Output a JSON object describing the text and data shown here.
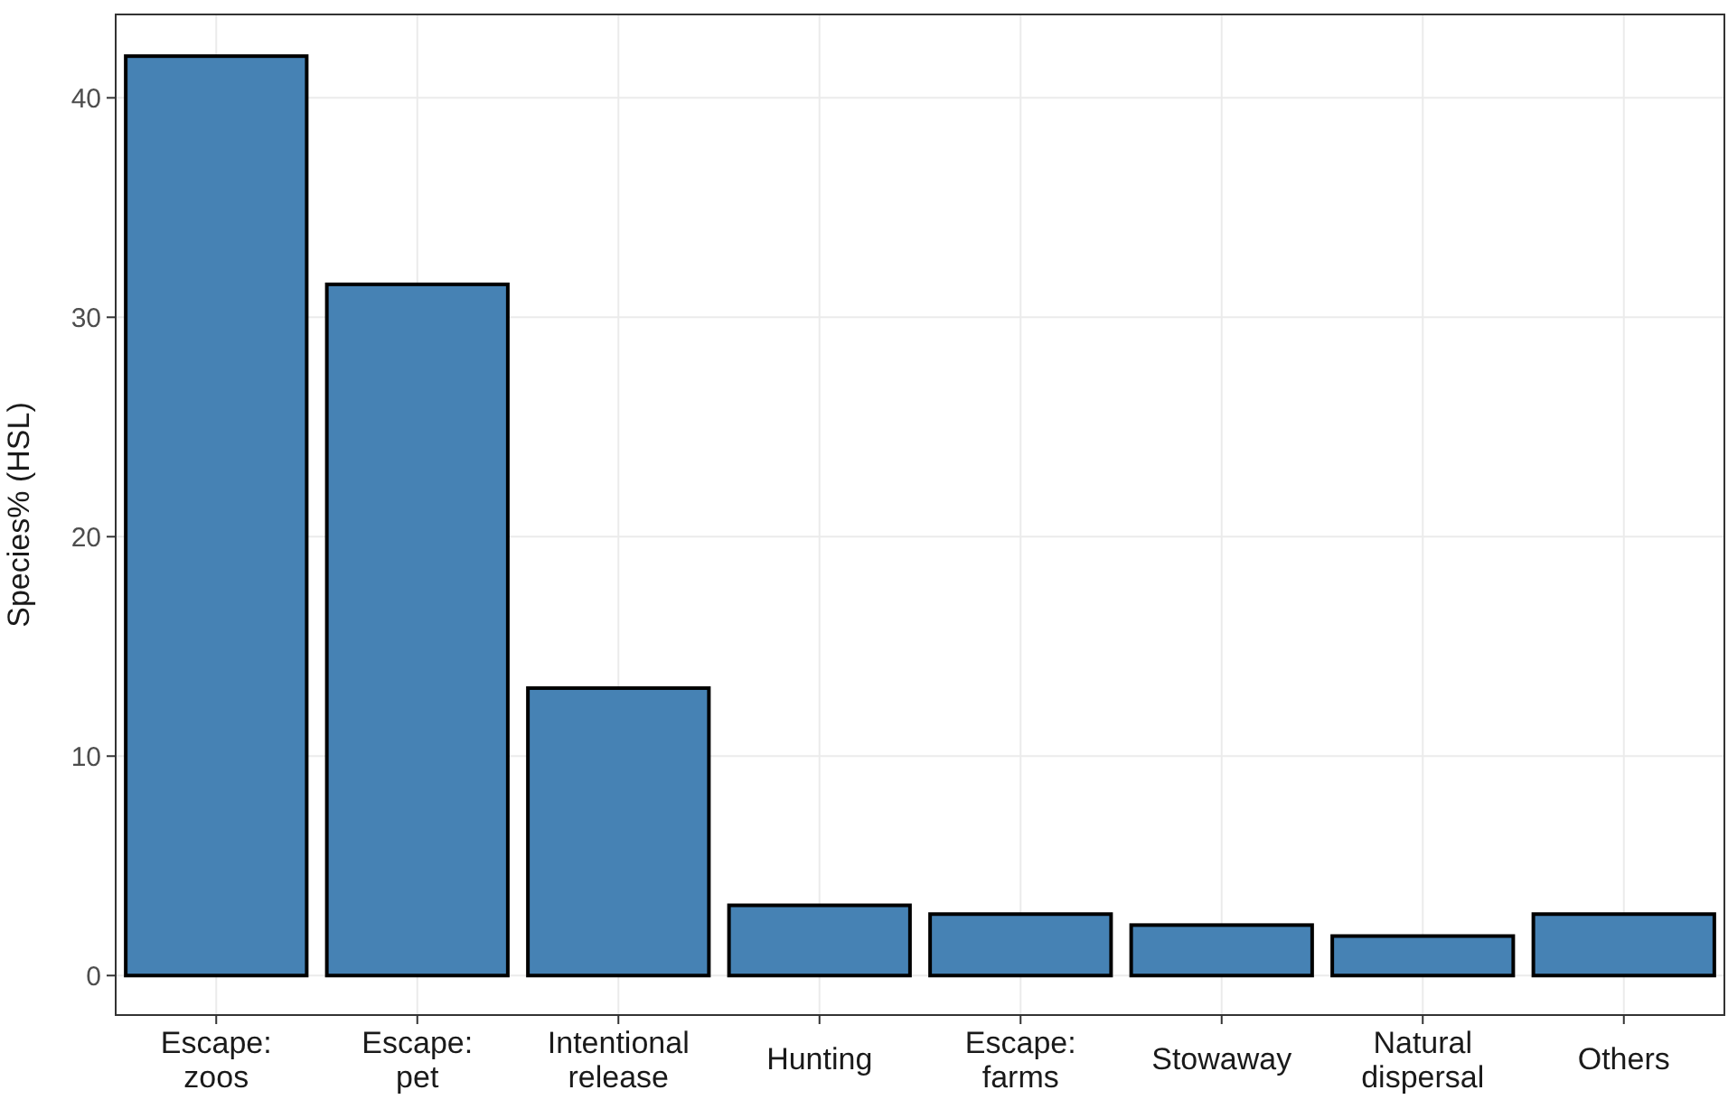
{
  "chart_data": {
    "type": "bar",
    "ylabel": "Species% (HSL)",
    "categories": [
      "Escape:\nzoos",
      "Escape:\npet",
      "Intentional\nrelease",
      "Hunting",
      "Escape:\nfarms",
      "Stowaway",
      "Natural\ndispersal",
      "Others"
    ],
    "values": [
      41.9,
      31.5,
      13.1,
      3.2,
      2.8,
      2.3,
      1.8,
      2.8
    ],
    "color": "#4682b4",
    "ylim": [
      -1.8,
      43.8
    ],
    "yticks": [
      0,
      10,
      20,
      30,
      40
    ],
    "grid": true
  }
}
